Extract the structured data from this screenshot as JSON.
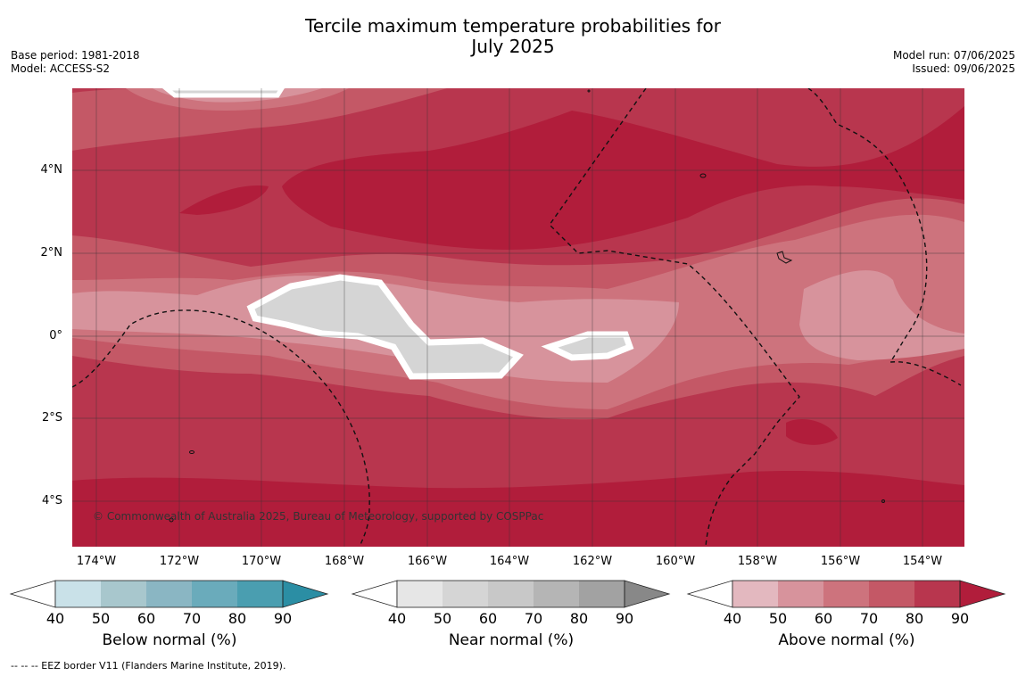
{
  "title_line1": "Tercile maximum temperature probabilities for",
  "title_line2": "July 2025",
  "meta": {
    "base_period": "Base period: 1981-2018",
    "model": "Model: ACCESS-S2",
    "model_run": "Model run: 07/06/2025",
    "issued": "Issued: 09/06/2025"
  },
  "map": {
    "lat_labels": [
      "4°N",
      "2°N",
      "0°",
      "2°S",
      "4°S"
    ],
    "lon_labels": [
      "174°W",
      "172°W",
      "170°W",
      "168°W",
      "166°W",
      "164°W",
      "162°W",
      "160°W",
      "158°W",
      "156°W",
      "154°W"
    ],
    "copyright": "© Commonwealth of Australia 2025, Bureau of Meteorology, supported by COSPPac"
  },
  "legends": [
    {
      "label": "Below normal (%)",
      "ticks": [
        "40",
        "50",
        "60",
        "70",
        "80",
        "90"
      ],
      "colors": [
        "#c9e1e8",
        "#a8c7cd",
        "#8ab6c3",
        "#6aabbb",
        "#4a9eb0",
        "#2b8ea4"
      ]
    },
    {
      "label": "Near normal (%)",
      "ticks": [
        "40",
        "50",
        "60",
        "70",
        "80",
        "90"
      ],
      "colors": [
        "#e6e6e6",
        "#d5d5d5",
        "#c8c8c8",
        "#b5b5b5",
        "#a2a2a2",
        "#888888"
      ]
    },
    {
      "label": "Above normal (%)",
      "ticks": [
        "40",
        "50",
        "60",
        "70",
        "80",
        "90"
      ],
      "colors": [
        "#e3b8bf",
        "#d7939c",
        "#cd737d",
        "#c45866",
        "#b8364e",
        "#b11d3b"
      ]
    }
  ],
  "footnote": "--  --  -- EEZ border V11 (Flanders Marine Institute, 2019)."
}
